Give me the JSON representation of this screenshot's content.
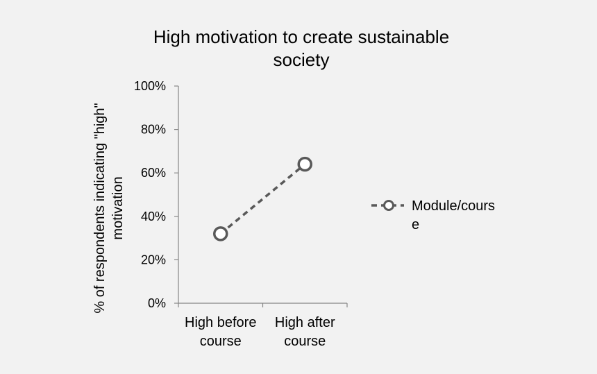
{
  "chart_data": {
    "type": "line",
    "title_lines": [
      "High motivation to create sustainable",
      "society"
    ],
    "ylabel_lines": [
      "% of respondents indicating \"high\"",
      "motivation"
    ],
    "categories": [
      [
        "High before",
        "course"
      ],
      [
        "High after",
        "course"
      ]
    ],
    "series": [
      {
        "name_lines": [
          "Module/cours",
          "e"
        ],
        "values": [
          0.32,
          0.64
        ],
        "color": "#595959",
        "line_style": "dashed",
        "marker": "open-circle"
      }
    ],
    "ylim": [
      0,
      1
    ],
    "y_ticks": [
      0,
      0.2,
      0.4,
      0.6,
      0.8,
      1.0
    ],
    "y_tick_labels": [
      "0%",
      "20%",
      "40%",
      "60%",
      "80%",
      "100%"
    ],
    "grid": false,
    "legend_position": "right"
  }
}
